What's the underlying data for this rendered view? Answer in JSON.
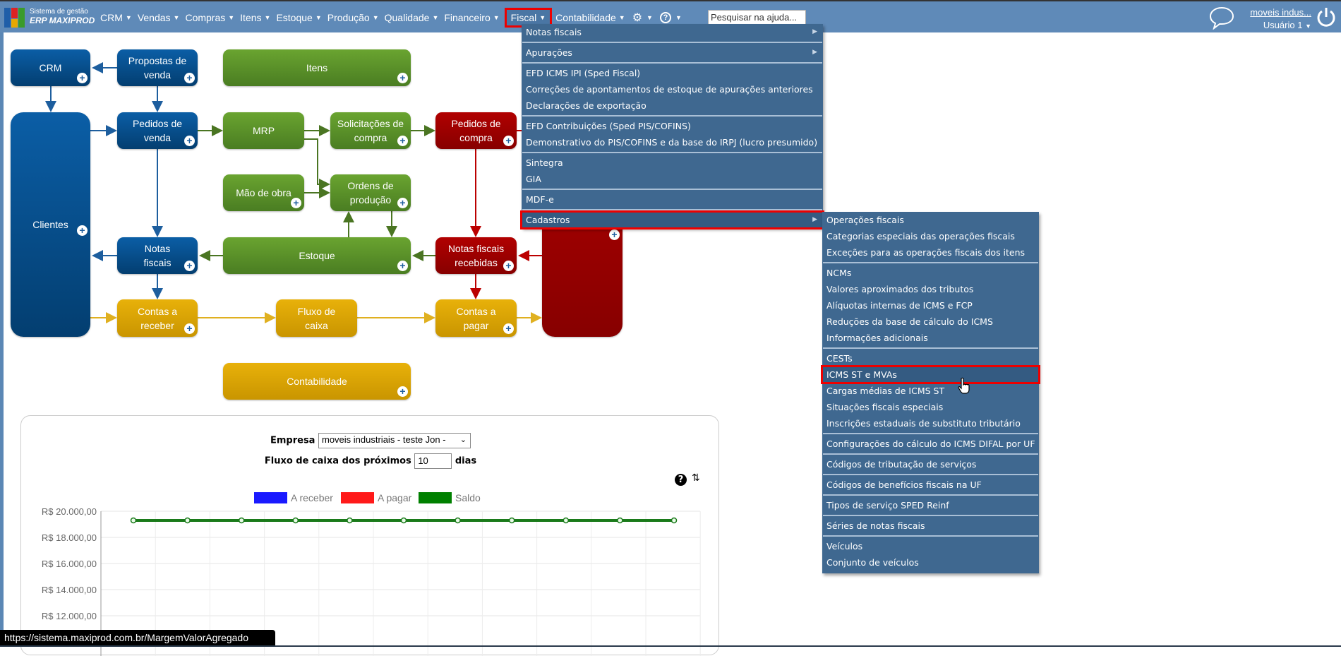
{
  "header": {
    "logo_line1": "Sistema de gestão",
    "logo_line2": "ERP MAXIPROD",
    "nav": [
      "CRM",
      "Vendas",
      "Compras",
      "Itens",
      "Estoque",
      "Produção",
      "Qualidade",
      "Financeiro",
      "Fiscal",
      "Contabilidade"
    ],
    "active_nav": "Fiscal",
    "search_placeholder": "Pesquisar na ajuda...",
    "company": "moveis indus...",
    "user": "Usuário 1"
  },
  "diagram": {
    "crm": "CRM",
    "propostas": "Propostas de venda",
    "itens": "Itens",
    "clientes": "Clientes",
    "pedidos_venda": "Pedidos de venda",
    "mrp": "MRP",
    "solicitacoes": "Solicitações de compra",
    "pedidos_compra": "Pedidos de compra",
    "mao_obra": "Mão de obra",
    "ordens": "Ordens de produção",
    "notas": "Notas fiscais",
    "estoque": "Estoque",
    "notas_recebidas": "Notas fiscais recebidas",
    "contas_receber": "Contas a receber",
    "fluxo": "Fluxo de caixa",
    "contas_pagar": "Contas a pagar",
    "contabilidade": "Contabilidade"
  },
  "fiscal_menu": [
    {
      "label": "Notas fiscais",
      "sub": true
    },
    {
      "sep": true
    },
    {
      "label": "Apurações",
      "sub": true
    },
    {
      "sep": true
    },
    {
      "label": "EFD ICMS IPI (Sped Fiscal)"
    },
    {
      "label": "Correções de apontamentos de estoque de apurações anteriores"
    },
    {
      "label": "Declarações de exportação"
    },
    {
      "sep": true
    },
    {
      "label": "EFD Contribuições (Sped PIS/COFINS)"
    },
    {
      "label": "Demonstrativo do PIS/COFINS e da base do IRPJ (lucro presumido)"
    },
    {
      "sep": true
    },
    {
      "label": "Sintegra"
    },
    {
      "label": "GIA"
    },
    {
      "sep": true
    },
    {
      "label": "MDF-e"
    },
    {
      "sep": true
    },
    {
      "label": "Cadastros",
      "sub": true,
      "highlight": true
    }
  ],
  "cadastros_menu": [
    {
      "label": "Operações fiscais"
    },
    {
      "label": "Categorias especiais das operações fiscais"
    },
    {
      "label": "Exceções para as operações fiscais dos itens"
    },
    {
      "sep": true
    },
    {
      "label": "NCMs"
    },
    {
      "label": "Valores aproximados dos tributos"
    },
    {
      "label": "Alíquotas internas de ICMS e FCP"
    },
    {
      "label": "Reduções da base de cálculo do ICMS"
    },
    {
      "label": "Informações adicionais"
    },
    {
      "sep": true
    },
    {
      "label": "CESTs"
    },
    {
      "label": "ICMS ST e MVAs",
      "highlight": true
    },
    {
      "label": "Cargas médias de ICMS ST"
    },
    {
      "label": "Situações fiscais especiais"
    },
    {
      "label": "Inscrições estaduais de substituto tributário"
    },
    {
      "sep": true
    },
    {
      "label": "Configurações do cálculo do ICMS DIFAL por UF"
    },
    {
      "sep": true
    },
    {
      "label": "Códigos de tributação de serviços"
    },
    {
      "sep": true
    },
    {
      "label": "Códigos de benefícios fiscais na UF"
    },
    {
      "sep": true
    },
    {
      "label": "Tipos de serviço SPED Reinf"
    },
    {
      "sep": true
    },
    {
      "label": "Séries de notas fiscais"
    },
    {
      "sep": true
    },
    {
      "label": "Veículos"
    },
    {
      "label": "Conjunto de veículos"
    }
  ],
  "cashflow": {
    "empresa_label": "Empresa",
    "empresa_value": "moveis industriais - teste Jon -",
    "fluxo_label": "Fluxo de caixa dos próximos",
    "dias_value": "10",
    "dias_label": "dias"
  },
  "chart_data": {
    "type": "line",
    "legend": [
      {
        "name": "A receber",
        "color": "#1a1aff"
      },
      {
        "name": "A pagar",
        "color": "#ff1a1a"
      },
      {
        "name": "Saldo",
        "color": "#008000"
      }
    ],
    "y_ticks": [
      "R$ 20.000,00",
      "R$ 18.000,00",
      "R$ 16.000,00",
      "R$ 14.000,00",
      "R$ 12.000,00"
    ],
    "ylim_visible": [
      12000,
      20000
    ],
    "series": [
      {
        "name": "Saldo",
        "values": [
          19300,
          19300,
          19300,
          19300,
          19300,
          19300,
          19300,
          19300,
          19300,
          19300,
          19300
        ]
      }
    ],
    "grid": true,
    "legend_position": "top"
  },
  "status_url": "https://sistema.maxiprod.com.br/MargemValorAgregado"
}
